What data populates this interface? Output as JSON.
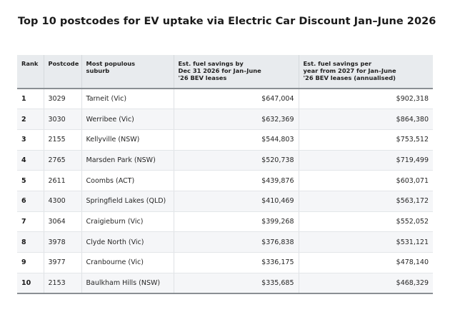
{
  "title": "Top 10 postcodes for EV uptake via Electric Car Discount Jan–June 2026",
  "table": {
    "headers": {
      "rank": "Rank",
      "postcode": "Postcode",
      "suburb": [
        "Most populous",
        "suburb"
      ],
      "savings_2026": [
        "Est. fuel savings by",
        "Dec 31 2026 for Jan–June",
        "'26 BEV leases"
      ],
      "savings_annual": [
        "Est. fuel savings per",
        "year from 2027 for Jan–June",
        "'26 BEV leases (annualised)"
      ]
    },
    "rows": [
      {
        "rank": "1",
        "postcode": "3029",
        "suburb": "Tarneit (Vic)",
        "savings_2026": "$647,004",
        "savings_annual": "$902,318"
      },
      {
        "rank": "2",
        "postcode": "3030",
        "suburb": "Werribee (Vic)",
        "savings_2026": "$632,369",
        "savings_annual": "$864,380"
      },
      {
        "rank": "3",
        "postcode": "2155",
        "suburb": "Kellyville (NSW)",
        "savings_2026": "$544,803",
        "savings_annual": "$753,512"
      },
      {
        "rank": "4",
        "postcode": "2765",
        "suburb": "Marsden Park (NSW)",
        "savings_2026": "$520,738",
        "savings_annual": "$719,499"
      },
      {
        "rank": "5",
        "postcode": "2611",
        "suburb": "Coombs (ACT)",
        "savings_2026": "$439,876",
        "savings_annual": "$603,071"
      },
      {
        "rank": "6",
        "postcode": "4300",
        "suburb": "Springfield Lakes (QLD)",
        "savings_2026": "$410,469",
        "savings_annual": "$563,172"
      },
      {
        "rank": "7",
        "postcode": "3064",
        "suburb": "Craigieburn (Vic)",
        "savings_2026": "$399,268",
        "savings_annual": "$552,052"
      },
      {
        "rank": "8",
        "postcode": "3978",
        "suburb": "Clyde North (Vic)",
        "savings_2026": "$376,838",
        "savings_annual": "$531,121"
      },
      {
        "rank": "9",
        "postcode": "3977",
        "suburb": "Cranbourne (Vic)",
        "savings_2026": "$336,175",
        "savings_annual": "$478,140"
      },
      {
        "rank": "10",
        "postcode": "2153",
        "suburb": "Baulkham Hills (NSW)",
        "savings_2026": "$335,685",
        "savings_annual": "$468,329"
      }
    ]
  }
}
